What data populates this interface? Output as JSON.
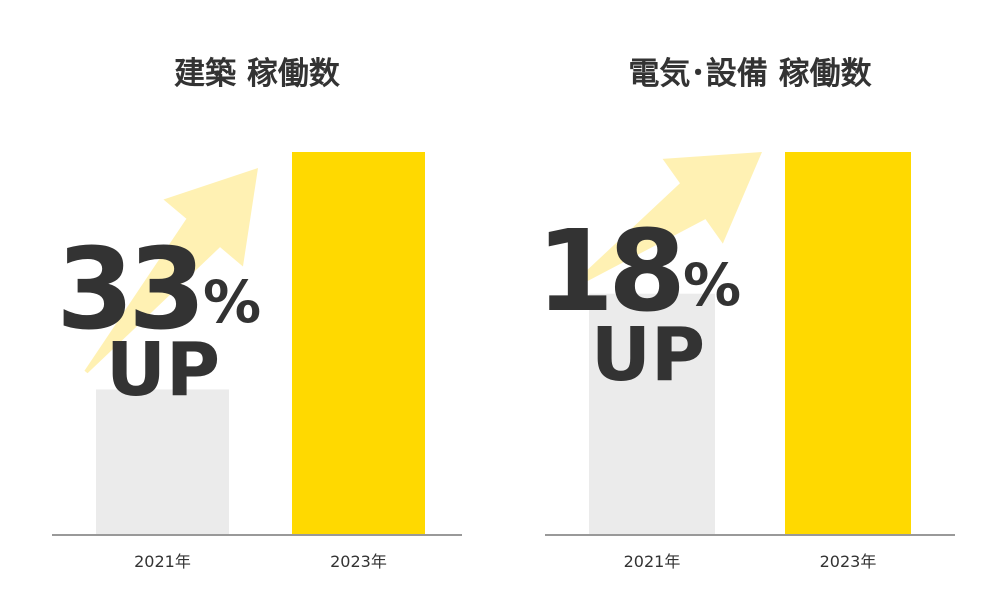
{
  "chart_data": [
    {
      "type": "bar",
      "title": "建築 稼働数",
      "categories": [
        "2021年",
        "2023年"
      ],
      "values": [
        38,
        100
      ],
      "colors": [
        "#ebebeb",
        "#ffd900"
      ],
      "ylim": [
        0,
        100
      ],
      "annotation": {
        "number": "33",
        "unit": "%",
        "label": "UP"
      }
    },
    {
      "type": "bar",
      "title": "電気･設備 稼働数",
      "categories": [
        "2021年",
        "2023年"
      ],
      "values": [
        63,
        100
      ],
      "colors": [
        "#ebebeb",
        "#ffd900"
      ],
      "ylim": [
        0,
        100
      ],
      "annotation": {
        "number": "18",
        "unit": "%",
        "label": "UP"
      }
    }
  ]
}
